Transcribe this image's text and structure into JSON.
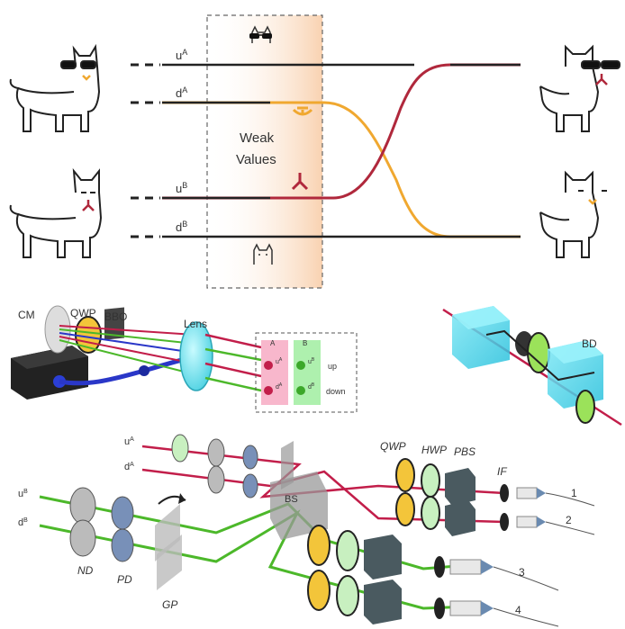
{
  "top_panel": {
    "channels": [
      {
        "id": "uA",
        "base": "u",
        "sup": "A"
      },
      {
        "id": "dA",
        "base": "d",
        "sup": "A"
      },
      {
        "id": "uB",
        "base": "u",
        "sup": "B"
      },
      {
        "id": "dB",
        "base": "d",
        "sup": "B"
      }
    ],
    "weak_values_line1": "Weak",
    "weak_values_line2": "Values",
    "colors": {
      "orange": "#f0a830",
      "crimson": "#b0283c",
      "line": "#222222",
      "box_fill": "#fbe3cf"
    }
  },
  "source_panel": {
    "cm": "CM",
    "qwp": "QWP",
    "bbo": "BBO",
    "lens": "Lens",
    "inset": {
      "col_a": "A",
      "col_b": "B",
      "row_up": "up",
      "row_down": "down",
      "spots": [
        {
          "base": "u",
          "sup": "A"
        },
        {
          "base": "d",
          "sup": "A"
        },
        {
          "base": "u",
          "sup": "B"
        },
        {
          "base": "d",
          "sup": "B"
        }
      ]
    }
  },
  "bd_panel": {
    "label": "BD"
  },
  "bottom_panel": {
    "inputs": [
      {
        "base": "u",
        "sup": "A"
      },
      {
        "base": "d",
        "sup": "A"
      },
      {
        "base": "u",
        "sup": "B"
      },
      {
        "base": "d",
        "sup": "B"
      }
    ],
    "nd": "ND",
    "pd": "PD",
    "gp": "GP",
    "bs": "BS",
    "qwp": "QWP",
    "hwp": "HWP",
    "pbs": "PBS",
    "if": "IF",
    "outputs": [
      "1",
      "2",
      "3",
      "4"
    ],
    "colors": {
      "red": "#c21e4a",
      "green": "#4cb82a"
    }
  }
}
